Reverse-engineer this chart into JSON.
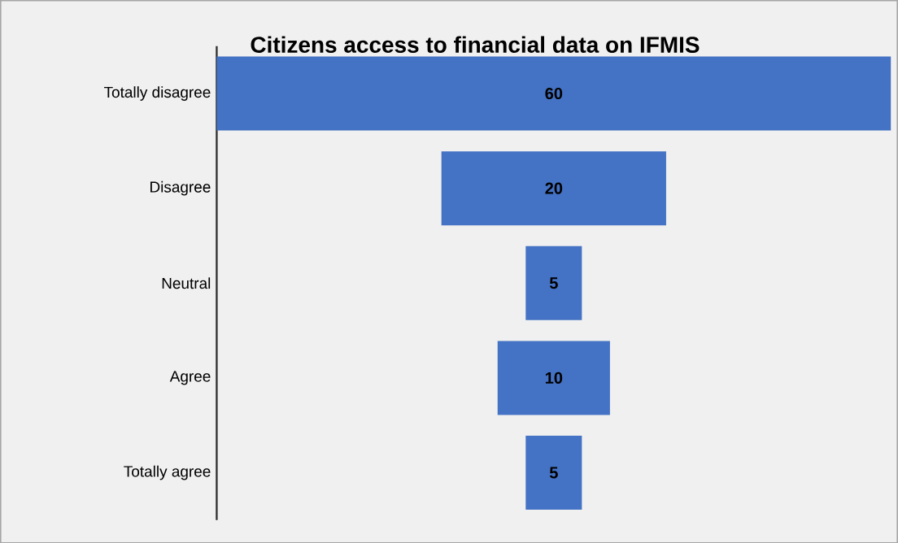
{
  "chart_data": {
    "type": "other",
    "title": "Citizens access to financial data on IFMIS",
    "categories": [
      "Totally disagree",
      "Disagree",
      "Neutral",
      "Agree",
      "Totally agree"
    ],
    "values": [
      60,
      20,
      5,
      10,
      5
    ],
    "color": "#4472c4",
    "data_labels": true
  }
}
